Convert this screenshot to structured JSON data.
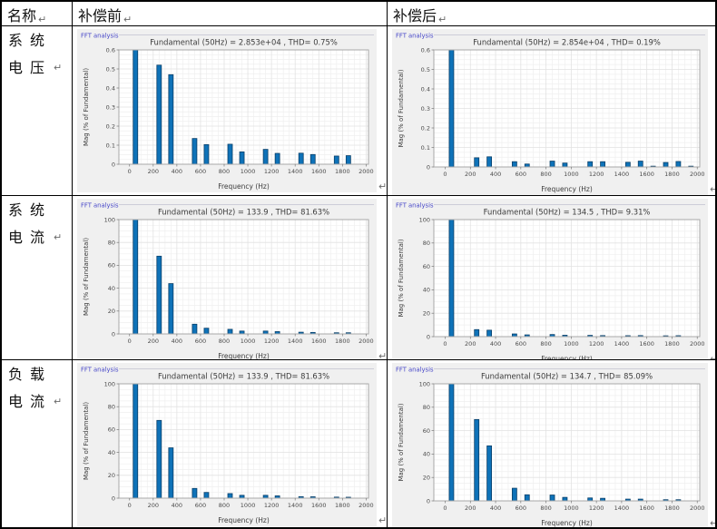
{
  "table": {
    "headers": {
      "name": "名称",
      "before": "补偿前",
      "after": "补偿后"
    },
    "rows": [
      {
        "label": "系统电压"
      },
      {
        "label": "系统电流"
      },
      {
        "label": "负载电流"
      }
    ]
  },
  "marks": {
    "return_mark": "↵"
  },
  "colors": {
    "bar_fill": "#0e72b8",
    "bar_edge": "#0a3f68",
    "panel_label": "#4646c8",
    "panel_line": "#cdcdd8",
    "chart_bg": "#f0f0f0",
    "plot_bg": "#ffffff",
    "grid_major": "#e2e2e2",
    "grid_minor": "#efefef",
    "axis_box": "#a8a8a8",
    "tick_mark": "#777777",
    "title_text": "#3c3c3c",
    "tick_text": "#4a4a4a",
    "table_border": "#000000"
  },
  "chart_data": {
    "type": "bar",
    "shared": {
      "panel_label": "FFT analysis",
      "xlabel": "Frequency (Hz)",
      "ylabel": "Mag (% of Fundamental)",
      "xticks": [
        0,
        200,
        400,
        600,
        800,
        1000,
        1200,
        1400,
        1600,
        1800,
        2000
      ],
      "xlim_display": [
        -90,
        2020
      ],
      "grid": "on",
      "legend": "none"
    },
    "charts": [
      {
        "id": "system-voltage-before",
        "title": "Fundamental (50Hz) = 2.853e+04 , THD= 0.75%",
        "ylim": [
          0,
          0.6
        ],
        "ytick_step": 0.1,
        "x": [
          50,
          250,
          350,
          550,
          650,
          850,
          950,
          1150,
          1250,
          1450,
          1550,
          1750,
          1850
        ],
        "values": [
          0.6,
          0.52,
          0.47,
          0.135,
          0.103,
          0.105,
          0.065,
          0.078,
          0.057,
          0.058,
          0.051,
          0.043,
          0.045
        ]
      },
      {
        "id": "system-voltage-after",
        "title": "Fundamental (50Hz) = 2.854e+04 , THD= 0.19%",
        "ylim": [
          0,
          0.6
        ],
        "ytick_step": 0.1,
        "x": [
          50,
          250,
          350,
          550,
          650,
          850,
          950,
          1150,
          1250,
          1450,
          1550,
          1650,
          1750,
          1850,
          1950
        ],
        "values": [
          0.6,
          0.047,
          0.052,
          0.027,
          0.015,
          0.03,
          0.02,
          0.027,
          0.027,
          0.024,
          0.03,
          0.004,
          0.023,
          0.028,
          0.004
        ]
      },
      {
        "id": "system-current-before",
        "title": "Fundamental (50Hz) = 133.9 , THD= 81.63%",
        "ylim": [
          0,
          100
        ],
        "ytick_step": 20,
        "x": [
          50,
          250,
          350,
          550,
          650,
          850,
          950,
          1150,
          1250,
          1450,
          1550,
          1750,
          1850
        ],
        "values": [
          100,
          68,
          44,
          8.5,
          5,
          4,
          2.5,
          2.5,
          2,
          1.5,
          1.3,
          1,
          1
        ]
      },
      {
        "id": "system-current-after",
        "title": "Fundamental (50Hz) = 134.5 , THD= 9.31%",
        "ylim": [
          0,
          100
        ],
        "ytick_step": 20,
        "x": [
          50,
          250,
          350,
          550,
          650,
          850,
          950,
          1150,
          1250,
          1450,
          1550,
          1750,
          1850
        ],
        "values": [
          100,
          6,
          5.5,
          2.3,
          1.5,
          1.8,
          1.2,
          1.1,
          0.9,
          0.8,
          0.9,
          0.7,
          0.8
        ]
      },
      {
        "id": "load-current-before",
        "title": "Fundamental (50Hz) = 133.9 , THD= 81.63%",
        "ylim": [
          0,
          100
        ],
        "ytick_step": 20,
        "x": [
          50,
          250,
          350,
          550,
          650,
          850,
          950,
          1150,
          1250,
          1450,
          1550,
          1750,
          1850
        ],
        "values": [
          100,
          68,
          44,
          8.5,
          5,
          4,
          2.5,
          2.5,
          2,
          1.3,
          1.2,
          0.9,
          0.8
        ]
      },
      {
        "id": "load-current-after",
        "title": "Fundamental (50Hz) = 134.7 , THD= 85.09%",
        "ylim": [
          0,
          100
        ],
        "ytick_step": 20,
        "x": [
          50,
          250,
          350,
          550,
          650,
          850,
          950,
          1150,
          1250,
          1450,
          1550,
          1750,
          1850
        ],
        "values": [
          100,
          69.5,
          47,
          10.8,
          5.2,
          5,
          3,
          2.5,
          2.2,
          1.5,
          1.5,
          1,
          1
        ]
      }
    ]
  }
}
